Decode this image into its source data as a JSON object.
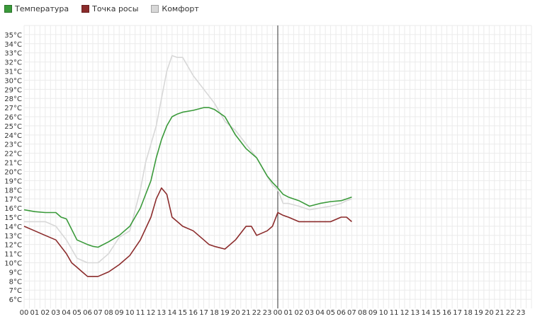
{
  "chart_data": {
    "type": "line",
    "title": "",
    "xlabel": "",
    "ylabel": "",
    "ylim": [
      5,
      36
    ],
    "yticks": [
      "6°C",
      "7°C",
      "8°C",
      "9°C",
      "10°C",
      "11°C",
      "12°C",
      "13°C",
      "14°C",
      "15°C",
      "16°C",
      "17°C",
      "18°C",
      "19°C",
      "20°C",
      "21°C",
      "22°C",
      "23°C",
      "24°C",
      "25°C",
      "26°C",
      "27°C",
      "28°C",
      "29°C",
      "30°C",
      "31°C",
      "32°C",
      "33°C",
      "34°C",
      "35°C"
    ],
    "xticks": [
      "00",
      "01",
      "02",
      "03",
      "04",
      "05",
      "06",
      "07",
      "08",
      "09",
      "10",
      "11",
      "12",
      "13",
      "14",
      "15",
      "16",
      "17",
      "18",
      "19",
      "20",
      "21",
      "22",
      "23",
      "00",
      "01",
      "02",
      "03",
      "04",
      "05",
      "06",
      "07",
      "08",
      "09",
      "10",
      "11",
      "12",
      "13",
      "14",
      "15",
      "16",
      "17",
      "18",
      "19",
      "20",
      "21",
      "22",
      "23"
    ],
    "x_unit": "hour",
    "xlim": [
      0,
      48
    ],
    "day_divider_x": 24,
    "grid": true,
    "legend_position": "top-left",
    "series": [
      {
        "name": "Температура",
        "color": "#3a9a3a",
        "x": [
          0,
          1,
          2,
          3,
          3.5,
          4,
          5,
          6,
          6.5,
          7,
          8,
          9,
          10,
          11,
          12,
          12.5,
          13,
          13.5,
          14,
          14.5,
          15,
          16,
          17,
          17.5,
          18,
          19,
          20,
          21,
          22,
          23,
          23.5,
          24,
          24.5,
          25,
          26,
          27,
          28,
          29,
          30,
          30.5,
          31
        ],
        "y": [
          15.8,
          15.6,
          15.5,
          15.5,
          15,
          14.8,
          12.5,
          12,
          11.8,
          11.7,
          12.3,
          13,
          14,
          16,
          19,
          21.5,
          23.5,
          25,
          26,
          26.3,
          26.5,
          26.7,
          27,
          27,
          26.8,
          26,
          24,
          22.5,
          21.5,
          19.5,
          18.8,
          18.2,
          17.5,
          17.2,
          16.8,
          16.2,
          16.5,
          16.7,
          16.8,
          17,
          17.2
        ]
      },
      {
        "name": "Точка росы",
        "color": "#8b2b2b",
        "x": [
          0,
          1,
          2,
          3,
          4,
          4.5,
          5,
          5.5,
          6,
          7,
          8,
          9,
          10,
          11,
          12,
          12.5,
          13,
          13.5,
          14,
          14.5,
          15,
          16,
          17,
          17.5,
          18,
          19,
          20,
          21,
          21.5,
          22,
          23,
          23.5,
          24,
          24.5,
          25,
          26,
          27,
          28,
          29,
          30,
          30.5,
          31
        ],
        "y": [
          14,
          13.5,
          13,
          12.5,
          11,
          10,
          9.5,
          9,
          8.5,
          8.5,
          9,
          9.8,
          10.8,
          12.5,
          15,
          17,
          18.2,
          17.5,
          15,
          14.5,
          14,
          13.5,
          12.5,
          12,
          11.8,
          11.5,
          12.5,
          14,
          14,
          13,
          13.5,
          14,
          15.5,
          15.2,
          15,
          14.5,
          14.5,
          14.5,
          14.5,
          15,
          15,
          14.5
        ]
      },
      {
        "name": "Комфорт",
        "color": "#d8d8d8",
        "x": [
          0,
          1,
          2,
          3,
          4,
          5,
          6,
          7,
          8,
          9,
          10,
          11,
          11.5,
          12,
          12.5,
          13,
          13.5,
          14,
          14.5,
          15,
          16,
          17,
          18,
          19,
          20,
          21,
          22,
          23,
          23.5,
          24,
          24.5,
          25,
          26,
          27,
          28,
          29,
          30,
          30.5,
          31
        ],
        "y": [
          14.5,
          14.5,
          14.5,
          14,
          12.5,
          10.5,
          10,
          10,
          11,
          12.8,
          13.5,
          18,
          21,
          23,
          25,
          28,
          31,
          32.7,
          32.5,
          32.5,
          30.5,
          29,
          27.5,
          25.5,
          24.5,
          23,
          21.5,
          19.5,
          18.5,
          18,
          16.5,
          16.5,
          16.2,
          15.8,
          16,
          16.2,
          16.5,
          16.8,
          17
        ]
      }
    ]
  }
}
